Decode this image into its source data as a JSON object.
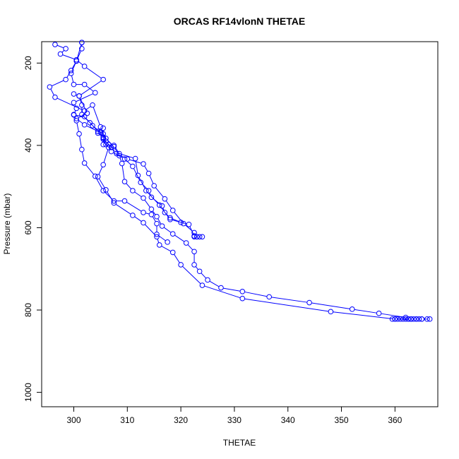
{
  "chart_data": {
    "type": "line",
    "title": "ORCAS RF14vlonN THETAE",
    "xlabel": "THETAE",
    "ylabel": "Pressure (mbar)",
    "xlim": [
      294,
      368
    ],
    "ylim": [
      1035,
      148
    ],
    "y_reversed": true,
    "x_ticks": [
      300,
      310,
      320,
      330,
      340,
      350,
      360
    ],
    "y_ticks": [
      200,
      400,
      600,
      800,
      1000
    ],
    "grid": false,
    "line_color": "#0000ff",
    "marker": "open-circle",
    "series": [
      {
        "points": [
          [
            296.5,
            155
          ],
          [
            298.5,
            165
          ],
          [
            297.5,
            178
          ],
          [
            300.5,
            192
          ],
          [
            302,
            208
          ],
          [
            305.5,
            240
          ],
          [
            301,
            280
          ],
          [
            302.5,
            322
          ],
          [
            300.5,
            335
          ],
          [
            302,
            350
          ],
          [
            305.5,
            372
          ],
          [
            306,
            390
          ],
          [
            307,
            405
          ],
          [
            308,
            420
          ],
          [
            310,
            433
          ],
          [
            313,
            445
          ],
          [
            314,
            468
          ],
          [
            315,
            498
          ],
          [
            317,
            530
          ],
          [
            318.5,
            558
          ],
          [
            320.5,
            590
          ],
          [
            322.5,
            612
          ],
          [
            323,
            622
          ],
          [
            323.5,
            622
          ],
          [
            324,
            622
          ],
          [
            323,
            622
          ],
          [
            322.5,
            622
          ]
        ]
      },
      {
        "points": [
          [
            301.5,
            150
          ],
          [
            301.5,
            165
          ],
          [
            300.5,
            195
          ],
          [
            299.5,
            218
          ],
          [
            298.5,
            240
          ],
          [
            295.5,
            258
          ],
          [
            296.5,
            283
          ],
          [
            302,
            316
          ],
          [
            303.5,
            302
          ],
          [
            305,
            355
          ],
          [
            305.5,
            380
          ],
          [
            305.5,
            398
          ],
          [
            307.5,
            400
          ],
          [
            308.5,
            420
          ],
          [
            311.5,
            432
          ],
          [
            312,
            473
          ],
          [
            313.5,
            510
          ],
          [
            316,
            545
          ],
          [
            318,
            580
          ],
          [
            321.5,
            592
          ],
          [
            322.5,
            620
          ]
        ]
      },
      {
        "points": [
          [
            301.5,
            150
          ],
          [
            300.5,
            195
          ],
          [
            299.5,
            225
          ],
          [
            300,
            252
          ],
          [
            302,
            252
          ],
          [
            304,
            272
          ],
          [
            300,
            296
          ],
          [
            300.5,
            310
          ],
          [
            300,
            326
          ],
          [
            302,
            330
          ],
          [
            304.5,
            366
          ],
          [
            305.5,
            358
          ],
          [
            305.5,
            385
          ],
          [
            306.5,
            398
          ],
          [
            307,
            415
          ],
          [
            309.5,
            433
          ],
          [
            311,
            451
          ],
          [
            312.5,
            490
          ],
          [
            314,
            510
          ],
          [
            314.5,
            526
          ],
          [
            316.5,
            547
          ],
          [
            317,
            563
          ],
          [
            318,
            576
          ],
          [
            320,
            587
          ]
        ]
      },
      {
        "points": [
          [
            300,
            275
          ],
          [
            301,
            280
          ],
          [
            301.5,
            302
          ],
          [
            301.5,
            325
          ],
          [
            303,
            345
          ],
          [
            303.5,
            352
          ],
          [
            305,
            368
          ],
          [
            306,
            383
          ],
          [
            307.5,
            403
          ],
          [
            308.5,
            425
          ],
          [
            309,
            444
          ],
          [
            309.5,
            488
          ],
          [
            311,
            510
          ],
          [
            313,
            528
          ],
          [
            314.5,
            555
          ],
          [
            315.5,
            573
          ],
          [
            316.5,
            596
          ],
          [
            318.5,
            615
          ],
          [
            321,
            637
          ],
          [
            322.5,
            658
          ],
          [
            322.5,
            690
          ],
          [
            323.5,
            706
          ],
          [
            325,
            727
          ],
          [
            327.5,
            746
          ],
          [
            331.5,
            755
          ],
          [
            336.5,
            768
          ],
          [
            344,
            782
          ],
          [
            352,
            798
          ],
          [
            357,
            808
          ],
          [
            362,
            818
          ],
          [
            362.5,
            822
          ],
          [
            363,
            822
          ],
          [
            363.5,
            822
          ],
          [
            364,
            822
          ],
          [
            364.5,
            822
          ],
          [
            365,
            822
          ],
          [
            366,
            822
          ],
          [
            366.5,
            822
          ],
          [
            365,
            822
          ],
          [
            364,
            822
          ],
          [
            363,
            822
          ],
          [
            362,
            822
          ],
          [
            361,
            822
          ],
          [
            360,
            822
          ],
          [
            359.5,
            822
          ],
          [
            360.5,
            822
          ],
          [
            361.5,
            822
          ],
          [
            362.5,
            822
          ]
        ]
      },
      {
        "points": [
          [
            304.5,
            370
          ],
          [
            305.5,
            382
          ],
          [
            306,
            398
          ],
          [
            306.5,
            405
          ],
          [
            305.5,
            447
          ],
          [
            304.5,
            476
          ],
          [
            306,
            508
          ],
          [
            307.5,
            540
          ],
          [
            311,
            570
          ],
          [
            313,
            588
          ],
          [
            315.5,
            622
          ],
          [
            316,
            642
          ],
          [
            318.5,
            660
          ],
          [
            320,
            690
          ],
          [
            324,
            740
          ],
          [
            331.5,
            772
          ],
          [
            348,
            804
          ],
          [
            360,
            822
          ],
          [
            363,
            822
          ]
        ]
      },
      {
        "points": [
          [
            300,
            325
          ],
          [
            300.5,
            340
          ],
          [
            301,
            372
          ],
          [
            301.5,
            410
          ],
          [
            302,
            443
          ],
          [
            304,
            475
          ],
          [
            305.5,
            510
          ],
          [
            307.5,
            535
          ],
          [
            309.5,
            535
          ],
          [
            313,
            563
          ],
          [
            314.5,
            568
          ],
          [
            315.5,
            590
          ],
          [
            315.5,
            616
          ],
          [
            317.5,
            635
          ]
        ]
      }
    ]
  }
}
